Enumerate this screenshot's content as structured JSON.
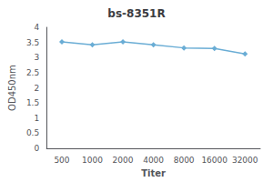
{
  "chart_data": {
    "type": "line",
    "title": "bs-8351R",
    "xlabel": "Titer",
    "ylabel": "OD450nm",
    "categories": [
      "500",
      "1000",
      "2000",
      "4000",
      "8000",
      "16000",
      "32000"
    ],
    "values": [
      3.52,
      3.42,
      3.52,
      3.42,
      3.32,
      3.3,
      3.12
    ],
    "color": "#6aadd5",
    "marker": "diamond",
    "ylim": [
      0,
      4
    ],
    "yticks": [
      0,
      0.5,
      1.0,
      1.5,
      2.0,
      2.5,
      3.0,
      3.5,
      4.0
    ],
    "grid": false
  }
}
